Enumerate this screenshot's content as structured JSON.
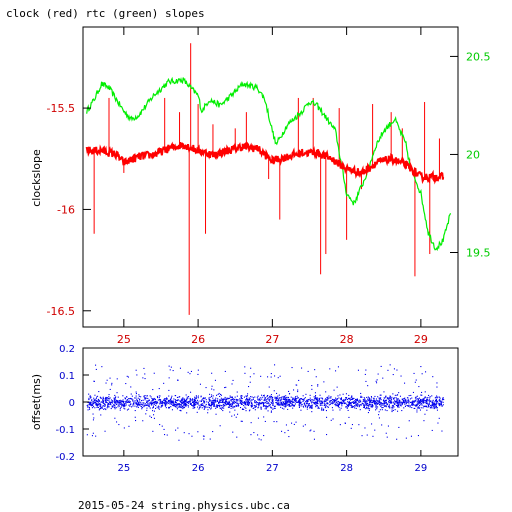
{
  "chart_data": [
    {
      "type": "line",
      "title": "clock (red) rtc (green) slopes",
      "ylabel": "clockslope",
      "xlim": [
        24.45,
        29.5
      ],
      "x_ticks": [
        "25",
        "26",
        "27",
        "28",
        "29"
      ],
      "y_left": {
        "lim": [
          -16.58,
          -15.1
        ],
        "ticks": [
          "-15.5",
          "-16",
          "-16.5"
        ],
        "color": "#ff0000"
      },
      "y_right": {
        "lim": [
          19.12,
          20.65
        ],
        "ticks": [
          "20.5",
          "20",
          "19.5"
        ],
        "color": "#00ee00"
      },
      "series": [
        {
          "color": "#ff0000",
          "axis": "left",
          "x": [
            24.5,
            24.7,
            24.9,
            25.0,
            25.2,
            25.4,
            25.6,
            25.8,
            26.0,
            26.2,
            26.4,
            26.6,
            26.8,
            27.0,
            27.2,
            27.4,
            27.6,
            27.8,
            28.0,
            28.2,
            28.4,
            28.6,
            28.8,
            29.0,
            29.2,
            29.3
          ],
          "y": [
            -15.71,
            -15.71,
            -15.73,
            -15.77,
            -15.74,
            -15.73,
            -15.7,
            -15.68,
            -15.71,
            -15.73,
            -15.71,
            -15.69,
            -15.7,
            -15.76,
            -15.74,
            -15.72,
            -15.72,
            -15.75,
            -15.8,
            -15.82,
            -15.77,
            -15.75,
            -15.78,
            -15.84,
            -15.84,
            -15.84
          ],
          "spikes": [
            {
              "x": 24.6,
              "y": -16.12
            },
            {
              "x": 24.8,
              "y": -15.45
            },
            {
              "x": 25.0,
              "y": -15.82
            },
            {
              "x": 25.55,
              "y": -15.45
            },
            {
              "x": 25.75,
              "y": -15.52
            },
            {
              "x": 25.88,
              "y": -16.52
            },
            {
              "x": 25.9,
              "y": -15.18
            },
            {
              "x": 26.0,
              "y": -15.48
            },
            {
              "x": 26.1,
              "y": -16.12
            },
            {
              "x": 26.2,
              "y": -15.58
            },
            {
              "x": 26.5,
              "y": -15.6
            },
            {
              "x": 26.65,
              "y": -15.52
            },
            {
              "x": 26.95,
              "y": -15.85
            },
            {
              "x": 27.1,
              "y": -16.05
            },
            {
              "x": 27.35,
              "y": -15.45
            },
            {
              "x": 27.55,
              "y": -15.45
            },
            {
              "x": 27.65,
              "y": -16.32
            },
            {
              "x": 27.72,
              "y": -16.22
            },
            {
              "x": 27.9,
              "y": -15.5
            },
            {
              "x": 28.0,
              "y": -16.15
            },
            {
              "x": 28.2,
              "y": -15.9
            },
            {
              "x": 28.35,
              "y": -15.48
            },
            {
              "x": 28.6,
              "y": -15.52
            },
            {
              "x": 28.75,
              "y": -15.6
            },
            {
              "x": 28.85,
              "y": -15.75
            },
            {
              "x": 28.92,
              "y": -16.33
            },
            {
              "x": 29.05,
              "y": -15.47
            },
            {
              "x": 29.12,
              "y": -16.22
            },
            {
              "x": 29.25,
              "y": -15.65
            }
          ]
        },
        {
          "color": "#00ee00",
          "axis": "right",
          "x": [
            24.5,
            24.6,
            24.7,
            24.8,
            25.0,
            25.1,
            25.2,
            25.4,
            25.6,
            25.8,
            25.9,
            26.0,
            26.05,
            26.15,
            26.3,
            26.5,
            26.6,
            26.8,
            26.9,
            27.0,
            27.05,
            27.2,
            27.4,
            27.5,
            27.6,
            27.7,
            27.85,
            28.0,
            28.1,
            28.25,
            28.4,
            28.5,
            28.65,
            28.8,
            28.85,
            29.0,
            29.1,
            29.2,
            29.3,
            29.4
          ],
          "y": [
            20.22,
            20.28,
            20.36,
            20.34,
            20.22,
            20.18,
            20.2,
            20.3,
            20.37,
            20.38,
            20.34,
            20.3,
            20.22,
            20.28,
            20.25,
            20.32,
            20.36,
            20.34,
            20.28,
            20.12,
            20.05,
            20.15,
            20.22,
            20.27,
            20.25,
            20.2,
            20.12,
            19.8,
            19.75,
            19.88,
            20.05,
            20.12,
            20.18,
            20.05,
            19.95,
            19.8,
            19.6,
            19.52,
            19.56,
            19.7
          ]
        }
      ]
    },
    {
      "type": "scatter",
      "ylabel": "offset(ms)",
      "xlim": [
        24.45,
        29.5
      ],
      "ylim": [
        -0.2,
        0.2
      ],
      "x_ticks": [
        "25",
        "26",
        "27",
        "28",
        "29"
      ],
      "y_ticks": [
        "0.2",
        "0.1",
        "0",
        "-0.1",
        "-0.2"
      ],
      "series": [
        {
          "color": "#0000ee",
          "x_range": [
            24.5,
            29.3
          ],
          "center": 0.0,
          "band": [
            -0.03,
            0.03
          ],
          "outlier_spread": [
            -0.15,
            0.15
          ]
        }
      ]
    }
  ],
  "footer": "2015-05-24 string.physics.ubc.ca"
}
